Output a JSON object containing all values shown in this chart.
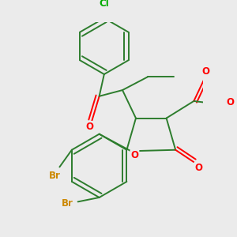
{
  "bg_color": "#ebebeb",
  "bond_color": "#2d7d2d",
  "bond_width": 1.4,
  "atom_colors": {
    "O": "#ff0000",
    "Br": "#cc8800",
    "Cl": "#00aa00",
    "C": "#2d7d2d"
  },
  "font_size_atom": 8.5
}
